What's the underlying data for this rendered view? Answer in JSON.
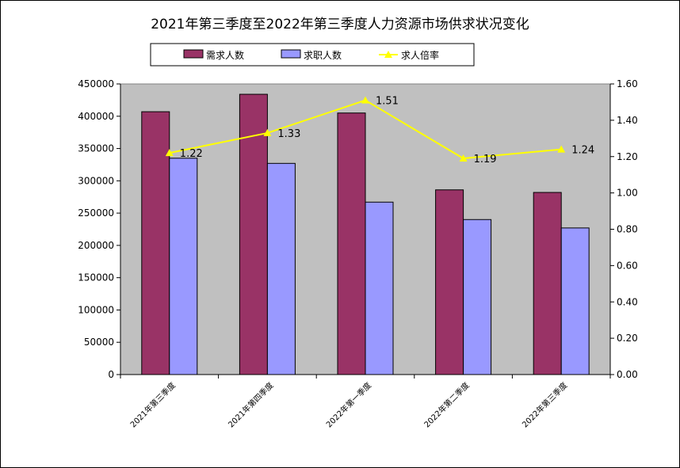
{
  "chart_data": {
    "type": "bar",
    "title": "2021年第三季度至2022年第三季度人力资源市场供求状况变化",
    "categories": [
      "2021年第三季度",
      "2021年第四季度",
      "2022年第一季度",
      "2022年第二季度",
      "2022年第三季度"
    ],
    "series": [
      {
        "name": "需求人数",
        "type": "bar",
        "axis": "left",
        "color": "#993366",
        "values": [
          407000,
          434000,
          405000,
          286000,
          282000
        ]
      },
      {
        "name": "求职人数",
        "type": "bar",
        "axis": "left",
        "color": "#9999FF",
        "values": [
          335000,
          327000,
          267000,
          240000,
          227000
        ]
      },
      {
        "name": "求人倍率",
        "type": "line",
        "axis": "right",
        "color": "#FFFF00",
        "values": [
          1.22,
          1.33,
          1.51,
          1.19,
          1.24
        ],
        "labels": [
          "1.22",
          "1.33",
          "1.51",
          "1.19",
          "1.24"
        ]
      }
    ],
    "y_left": {
      "range": [
        0,
        450000
      ],
      "ticks": [
        "0",
        "50000",
        "100000",
        "150000",
        "200000",
        "250000",
        "300000",
        "350000",
        "400000",
        "450000"
      ]
    },
    "y_right": {
      "range": [
        0,
        1.6
      ],
      "ticks": [
        "0.00",
        "0.20",
        "0.40",
        "0.60",
        "0.80",
        "1.00",
        "1.20",
        "1.40",
        "1.60"
      ]
    },
    "plot_background": "#C0C0C0",
    "legend_position": "top",
    "grid": false
  }
}
